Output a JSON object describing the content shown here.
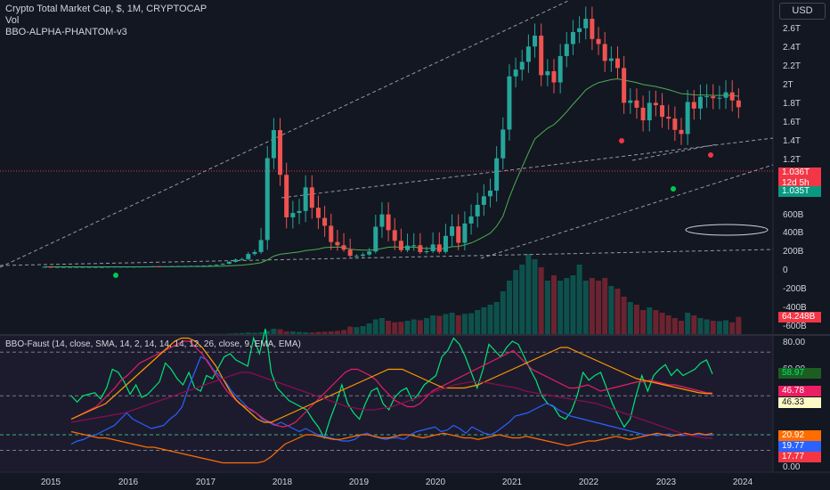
{
  "header": {
    "symbol_line": "Crypto Total Market Cap, $, 1M, CRYPTOCAP",
    "vol_label": "Vol",
    "indicator_label": "BBO-ALPHA-PHANTOM-v3",
    "currency_button": "USD"
  },
  "price_axis": {
    "ticks": [
      "2.6T",
      "2.4T",
      "2.2T",
      "2T",
      "1.8T",
      "1.6T",
      "1.4T",
      "1.2T",
      "600B",
      "400B",
      "200B",
      "0",
      "-200B",
      "-400B",
      "-600B"
    ],
    "last_value": "1.036T",
    "countdown": "12d 5h",
    "close_tag": "1.035T",
    "volume_tag": "64.248B"
  },
  "faust_panel": {
    "label": "BBO-Faust (14, close, SMA, 14, 2, 14, 14, 14, 12, 26, close, 9, EMA, EMA)",
    "ticks": [
      "80.00",
      "60.00",
      "40.00",
      "20.00",
      "0.00"
    ],
    "tags": [
      {
        "text": "58.97",
        "bg": "#1b5e20",
        "color": "#00e676"
      },
      {
        "text": "46.78",
        "bg": "#e91e63",
        "color": "#ffffff"
      },
      {
        "text": "46.33",
        "bg": "#fff9c4",
        "color": "#131722"
      },
      {
        "text": "20.92",
        "bg": "#ff6d00",
        "color": "#ffffff"
      },
      {
        "text": "19.77",
        "bg": "#2962ff",
        "color": "#ffffff"
      },
      {
        "text": "17.77",
        "bg": "#f23645",
        "color": "#ffffff"
      }
    ]
  },
  "time_axis": [
    "2015",
    "2016",
    "2017",
    "2018",
    "2019",
    "2020",
    "2021",
    "2022",
    "2023",
    "2024"
  ],
  "colors": {
    "up": "#089981",
    "down": "#f23645",
    "bg": "#131722",
    "ema": "#4caf50",
    "trend": "#9598a1"
  },
  "chart_data": [
    {
      "type": "candlestick",
      "title": "Crypto Total Market Cap, $, 1M, CRYPTOCAP",
      "ylabel": "USD",
      "scale": "log",
      "x_start": "2014-12",
      "x_step": "1 month",
      "note_values": "approximate monthly close, in billions USD",
      "close": [
        5,
        4,
        4,
        4,
        4,
        4,
        4,
        4,
        4,
        4,
        6,
        7,
        7,
        7,
        7,
        8,
        9,
        11,
        10,
        11,
        13,
        14,
        15,
        16,
        17,
        19,
        22,
        28,
        39,
        61,
        86,
        92,
        149,
        171,
        223,
        575,
        795,
        474,
        290,
        305,
        312,
        410,
        324,
        288,
        263,
        218,
        210,
        197,
        128,
        128,
        143,
        177,
        260,
        300,
        250,
        221,
        192,
        209,
        210,
        170,
        180,
        212,
        173,
        234,
        261,
        216,
        270,
        293,
        335,
        370,
        395,
        574,
        800,
        1480,
        1600,
        1750,
        2090,
        2370,
        1500,
        1570,
        1380,
        1870,
        2150,
        2470,
        2580,
        2880,
        2280,
        2150,
        1770,
        1820,
        1630,
        1090,
        1120,
        1030,
        890,
        1090,
        1060,
        927,
        908,
        797,
        760,
        1100,
        1020,
        1170,
        1175,
        1150,
        1155,
        1230,
        1120,
        1036
      ],
      "volume_billions": [
        0,
        0,
        0,
        0,
        0,
        0,
        0,
        0,
        0,
        0,
        0,
        0,
        0,
        0,
        0,
        0,
        0,
        0,
        0,
        0,
        0,
        0,
        0,
        0,
        1,
        1,
        1,
        1,
        1,
        2,
        3,
        4,
        6,
        5,
        7,
        12,
        20,
        18,
        10,
        10,
        8,
        7,
        6,
        8,
        9,
        10,
        12,
        15,
        28,
        26,
        30,
        40,
        55,
        60,
        50,
        44,
        46,
        50,
        55,
        52,
        60,
        70,
        68,
        75,
        80,
        70,
        76,
        78,
        90,
        100,
        110,
        120,
        160,
        200,
        240,
        260,
        300,
        280,
        250,
        200,
        220,
        200,
        210,
        220,
        260,
        200,
        210,
        200,
        210,
        180,
        170,
        140,
        120,
        110,
        90,
        100,
        90,
        80,
        70,
        60,
        50,
        80,
        70,
        60,
        55,
        50,
        48,
        52,
        44,
        64.248
      ]
    },
    {
      "type": "line",
      "title": "BBO-Faust (14, close, SMA, 14, 2, 14, 14, 14, 12, 26, close, 9, EMA, EMA)",
      "ylim": [
        0,
        85
      ],
      "x_start": "2015-05",
      "x_step": "1 month",
      "levels": [
        73,
        45,
        20,
        10
      ],
      "series": [
        {
          "color": "#00e676",
          "values": [
            45,
            41,
            45,
            46,
            47,
            43,
            50,
            62,
            60,
            54,
            46,
            52,
            44,
            46,
            50,
            54,
            66,
            62,
            56,
            52,
            60,
            50,
            48,
            58,
            56,
            63,
            70,
            72,
            68,
            66,
            64,
            82,
            72,
            88,
            60,
            50,
            46,
            42,
            40,
            38,
            36,
            30,
            25,
            18,
            30,
            40,
            52,
            40,
            34,
            30,
            40,
            48,
            50,
            40,
            36,
            44,
            48,
            50,
            42,
            46,
            52,
            55,
            58,
            70,
            74,
            82,
            78,
            70,
            60,
            50,
            62,
            78,
            74,
            70,
            76,
            80,
            78,
            70,
            62,
            55,
            45,
            40,
            38,
            32,
            30,
            35,
            45,
            60,
            55,
            58,
            60,
            50,
            40,
            32,
            25,
            30,
            45,
            58,
            48,
            58,
            62,
            65,
            58,
            62,
            58,
            60,
            62,
            66,
            68,
            58.97
          ]
        },
        {
          "color": "#2962ff",
          "values": [
            14,
            16,
            17,
            19,
            20,
            22,
            24,
            26,
            30,
            34,
            30,
            28,
            26,
            24,
            25,
            26,
            30,
            33,
            38,
            50,
            60,
            70,
            68,
            62,
            58,
            54,
            48,
            44,
            40,
            36,
            34,
            30,
            28,
            26,
            28,
            26,
            24,
            22,
            24,
            22,
            20,
            19,
            18,
            17,
            16,
            16,
            17,
            20,
            21,
            19,
            18,
            17,
            18,
            18,
            17,
            20,
            22,
            23,
            24,
            25,
            22,
            23,
            26,
            24,
            21,
            25,
            23,
            21,
            20,
            22,
            25,
            28,
            32,
            33,
            34,
            36,
            38,
            40,
            39,
            36,
            34,
            32,
            31,
            30,
            29,
            28,
            27,
            26,
            25,
            24,
            23,
            22,
            21,
            20,
            20,
            19.5,
            20,
            20.5,
            19.8,
            19.5,
            19.7,
            20,
            20.1,
            19.7,
            19.77
          ]
        },
        {
          "color": "#e91e63",
          "values": [
            30,
            32,
            34,
            36,
            38,
            42,
            46,
            50,
            55,
            58,
            62,
            66,
            68,
            70,
            72,
            74,
            76,
            78,
            80,
            80,
            76,
            72,
            66,
            60,
            54,
            48,
            44,
            40,
            38,
            36,
            33,
            30,
            28,
            26,
            25,
            26,
            28,
            32,
            36,
            40,
            44,
            48,
            52,
            56,
            60,
            62,
            62,
            60,
            58,
            55,
            50,
            46,
            42,
            40,
            38,
            38,
            40,
            44,
            48,
            50,
            52,
            54,
            56,
            58,
            60,
            62,
            64,
            66,
            68,
            70,
            72,
            74,
            70,
            66,
            62,
            60,
            58,
            56,
            54,
            52,
            50,
            50,
            51,
            52,
            50,
            48,
            49,
            50,
            51,
            52,
            53,
            54,
            54,
            55,
            54,
            53,
            52,
            52,
            51,
            50,
            49,
            48,
            47,
            46.78
          ]
        },
        {
          "color": "#ff9800",
          "values": [
            30,
            32,
            34,
            36,
            38,
            40,
            44,
            48,
            52,
            56,
            60,
            64,
            68,
            72,
            76,
            80,
            82,
            82,
            80,
            76,
            70,
            64,
            56,
            48,
            42,
            38,
            34,
            30,
            28,
            28,
            30,
            32,
            34,
            36,
            38,
            40,
            42,
            44,
            46,
            48,
            50,
            52,
            54,
            56,
            58,
            60,
            62,
            62,
            62,
            60,
            58,
            56,
            54,
            52,
            50,
            50,
            50,
            50,
            51,
            52,
            54,
            56,
            58,
            60,
            62,
            64,
            66,
            68,
            70,
            72,
            74,
            76,
            76,
            74,
            72,
            70,
            68,
            66,
            64,
            62,
            60,
            58,
            56,
            55,
            54,
            53,
            52,
            51,
            50,
            49,
            48,
            47,
            46.5,
            46.33
          ]
        },
        {
          "color": "#ff6d00",
          "values": [
            22,
            21,
            20,
            19,
            18,
            18,
            17,
            16,
            15,
            14,
            13,
            12,
            12,
            11,
            10,
            9,
            8,
            7,
            6,
            5,
            4,
            3,
            2,
            2,
            2,
            2,
            2,
            2,
            3,
            6,
            10,
            14,
            16,
            18,
            20,
            20,
            19,
            18,
            17,
            17,
            18,
            19,
            20,
            20,
            19,
            18,
            18,
            19,
            20,
            20,
            19,
            18,
            19,
            20,
            21,
            20,
            19,
            18,
            18,
            17,
            18,
            19,
            20,
            19,
            18,
            18,
            19,
            18,
            17,
            16,
            15,
            14,
            13,
            14,
            15,
            16,
            16,
            17,
            18,
            19,
            18,
            17,
            18,
            19,
            20,
            21,
            20,
            19,
            20,
            21,
            20,
            21,
            20,
            20.92
          ]
        },
        {
          "color": "#880e4f",
          "values": [
            28,
            29,
            30,
            31,
            32,
            33,
            34,
            36,
            38,
            40,
            42,
            44,
            46,
            48,
            50,
            52,
            54,
            56,
            58,
            60,
            60,
            58,
            56,
            54,
            52,
            50,
            48,
            46,
            44,
            42,
            40,
            38,
            37,
            36,
            36,
            37,
            38,
            40,
            42,
            44,
            46,
            48,
            50,
            52,
            53,
            54,
            54,
            53,
            52,
            51,
            50,
            48,
            47,
            46,
            45,
            44,
            43,
            42,
            41,
            40,
            38,
            36,
            34,
            32,
            30,
            28,
            26,
            24,
            22,
            20,
            19,
            18,
            17.77
          ]
        }
      ]
    }
  ]
}
